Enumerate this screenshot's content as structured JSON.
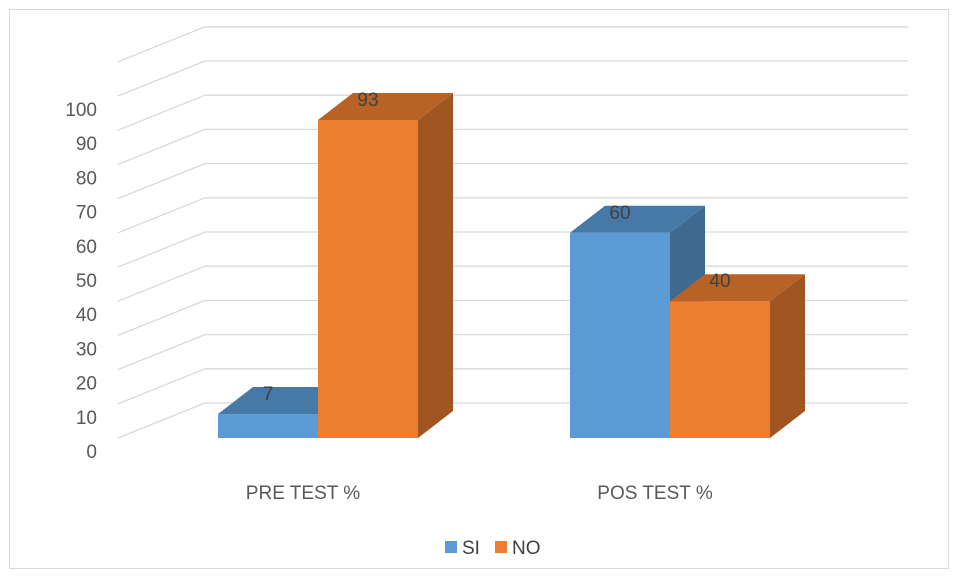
{
  "chart_data": {
    "type": "bar",
    "title": "",
    "xlabel": "",
    "ylabel": "",
    "categories": [
      "PRE TEST %",
      "POS TEST %"
    ],
    "series": [
      {
        "name": "SI",
        "values": [
          7,
          60
        ],
        "color": "#5b9bd5"
      },
      {
        "name": "NO",
        "values": [
          93,
          40
        ],
        "color": "#ed7d31"
      }
    ],
    "ylim": [
      0,
      100
    ],
    "yticks": [
      "0",
      "10",
      "20",
      "30",
      "40",
      "50",
      "60",
      "70",
      "80",
      "90",
      "100"
    ],
    "grid": true,
    "legend_position": "bottom",
    "style": "3d-column"
  }
}
